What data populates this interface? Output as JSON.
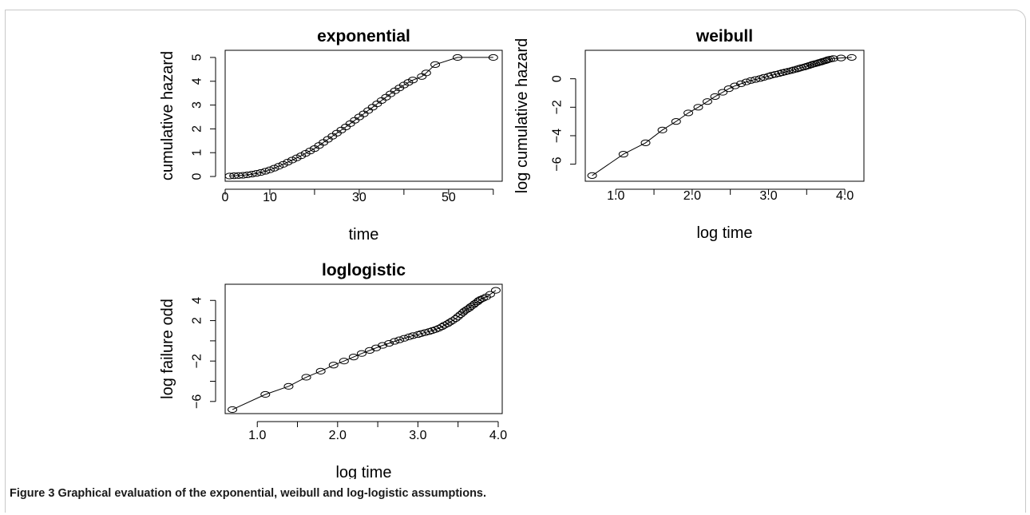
{
  "figure": {
    "label": "Figure 3",
    "caption": "Graphical evaluation of the exponential, weibull and log-logistic assumptions."
  },
  "chart_data": [
    {
      "type": "line",
      "markers": "open-circle",
      "title": "exponential",
      "xlabel": "time",
      "ylabel": "cumulative hazard",
      "xlim": [
        0,
        62
      ],
      "ylim": [
        -0.2,
        5.3
      ],
      "x_ticks": [
        0,
        10,
        20,
        30,
        40,
        50,
        60
      ],
      "x_tick_labels": [
        "0",
        "10",
        "",
        "30",
        "",
        "50",
        ""
      ],
      "y_ticks": [
        0,
        1,
        2,
        3,
        4,
        5
      ],
      "y_tick_labels": [
        "0",
        "1",
        "2",
        "3",
        "4",
        "5"
      ],
      "x": [
        1,
        2,
        3,
        4,
        5,
        6,
        7,
        8,
        9,
        10,
        11,
        12,
        13,
        14,
        15,
        16,
        17,
        18,
        19,
        20,
        21,
        22,
        23,
        24,
        25,
        26,
        27,
        28,
        29,
        30,
        31,
        32,
        33,
        34,
        35,
        36,
        37,
        38,
        39,
        40,
        41,
        42,
        44,
        45,
        47,
        52,
        60
      ],
      "y": [
        0.02,
        0.03,
        0.04,
        0.05,
        0.07,
        0.1,
        0.13,
        0.17,
        0.22,
        0.28,
        0.35,
        0.43,
        0.51,
        0.6,
        0.69,
        0.78,
        0.87,
        0.97,
        1.07,
        1.17,
        1.3,
        1.43,
        1.56,
        1.69,
        1.82,
        1.95,
        2.08,
        2.22,
        2.36,
        2.5,
        2.63,
        2.77,
        2.91,
        3.05,
        3.19,
        3.33,
        3.47,
        3.6,
        3.72,
        3.84,
        3.95,
        4.05,
        4.2,
        4.35,
        4.7,
        5.0,
        5.0
      ]
    },
    {
      "type": "line",
      "markers": "open-circle",
      "title": "weibull",
      "xlabel": "log time",
      "ylabel": "log cumulative hazard",
      "xlim": [
        0.6,
        4.25
      ],
      "ylim": [
        -7.2,
        2.0
      ],
      "x_ticks": [
        1.0,
        1.5,
        2.0,
        2.5,
        3.0,
        3.5,
        4.0
      ],
      "x_tick_labels": [
        "1.0",
        "",
        "2.0",
        "",
        "3.0",
        "",
        "4.0"
      ],
      "y_ticks": [
        -6,
        -4,
        -2,
        0
      ],
      "y_tick_labels": [
        "−6",
        "−4",
        "−2",
        "0"
      ],
      "x": [
        0.69,
        1.1,
        1.39,
        1.61,
        1.79,
        1.95,
        2.08,
        2.2,
        2.3,
        2.4,
        2.48,
        2.56,
        2.64,
        2.71,
        2.77,
        2.83,
        2.89,
        2.94,
        3.0,
        3.04,
        3.09,
        3.14,
        3.18,
        3.22,
        3.26,
        3.3,
        3.33,
        3.37,
        3.4,
        3.43,
        3.47,
        3.5,
        3.53,
        3.56,
        3.58,
        3.61,
        3.64,
        3.66,
        3.69,
        3.71,
        3.74,
        3.76,
        3.78,
        3.81,
        3.85,
        3.95,
        4.09
      ],
      "y": [
        -6.8,
        -5.3,
        -4.5,
        -3.6,
        -3.0,
        -2.4,
        -2.0,
        -1.6,
        -1.25,
        -0.95,
        -0.7,
        -0.5,
        -0.35,
        -0.22,
        -0.12,
        -0.05,
        0.02,
        0.1,
        0.18,
        0.25,
        0.31,
        0.37,
        0.43,
        0.48,
        0.53,
        0.58,
        0.63,
        0.68,
        0.73,
        0.78,
        0.83,
        0.88,
        0.93,
        0.98,
        1.02,
        1.06,
        1.1,
        1.14,
        1.18,
        1.22,
        1.26,
        1.3,
        1.34,
        1.38,
        1.42,
        1.46,
        1.5
      ]
    },
    {
      "type": "line",
      "markers": "open-circle",
      "title": "loglogistic",
      "xlabel": "log time",
      "ylabel": "log failure odd",
      "xlim": [
        0.6,
        4.05
      ],
      "ylim": [
        -7.2,
        5.6
      ],
      "x_ticks": [
        1.0,
        1.5,
        2.0,
        2.5,
        3.0,
        3.5,
        4.0
      ],
      "x_tick_labels": [
        "1.0",
        "",
        "2.0",
        "",
        "3.0",
        "",
        "4.0"
      ],
      "y_ticks": [
        -6,
        -4,
        -2,
        0,
        2,
        4
      ],
      "y_tick_labels": [
        "−6",
        "",
        "−2",
        "",
        "2",
        "4"
      ],
      "x": [
        0.69,
        1.1,
        1.39,
        1.61,
        1.79,
        1.95,
        2.08,
        2.2,
        2.3,
        2.4,
        2.48,
        2.56,
        2.64,
        2.71,
        2.77,
        2.83,
        2.89,
        2.94,
        3.0,
        3.04,
        3.09,
        3.14,
        3.18,
        3.22,
        3.26,
        3.3,
        3.33,
        3.37,
        3.4,
        3.43,
        3.47,
        3.5,
        3.53,
        3.56,
        3.58,
        3.61,
        3.64,
        3.66,
        3.69,
        3.71,
        3.74,
        3.76,
        3.78,
        3.81,
        3.85,
        3.9,
        3.97
      ],
      "y": [
        -6.8,
        -5.3,
        -4.5,
        -3.6,
        -3.0,
        -2.4,
        -2.0,
        -1.6,
        -1.25,
        -0.95,
        -0.7,
        -0.45,
        -0.25,
        -0.05,
        0.1,
        0.25,
        0.4,
        0.52,
        0.62,
        0.72,
        0.82,
        0.92,
        1.02,
        1.12,
        1.25,
        1.4,
        1.55,
        1.7,
        1.85,
        2.0,
        2.2,
        2.4,
        2.6,
        2.8,
        2.95,
        3.1,
        3.25,
        3.4,
        3.55,
        3.7,
        3.85,
        4.0,
        4.1,
        4.2,
        4.35,
        4.6,
        5.0
      ]
    }
  ]
}
